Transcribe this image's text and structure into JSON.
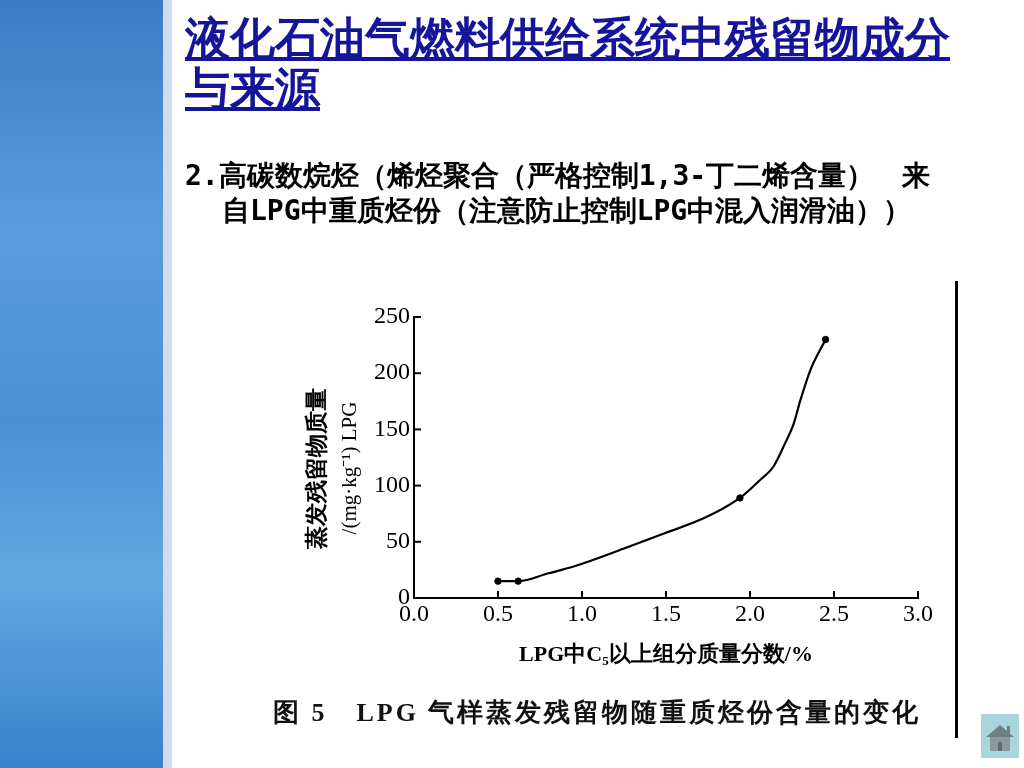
{
  "chart_data": {
    "type": "line",
    "title": "液化石油气燃料供给系统中残留物成分与来源",
    "subtitle": "2.高碳数烷烃（烯烃聚合（严格控制1,3-丁二烯含量）　来自LPG中重质烃份（注意防止控制LPG中混入润滑油））",
    "xlabel": "LPG中C₅以上组分质量分数/%",
    "ylabel": "蒸发残留物质量\n/(mg·kg⁻¹) LPG",
    "annotations": [
      "图 5　LPG 气样蒸发残留物随重质烃份含量的变化"
    ],
    "xlim": [
      0,
      3
    ],
    "xticks": [
      {
        "value": 0,
        "label": "0.0"
      },
      0.5,
      {
        "value": 1,
        "label": "1.0"
      },
      1.5,
      {
        "value": 2,
        "label": "2.0"
      },
      2.5,
      {
        "value": 3,
        "label": "3.0"
      }
    ],
    "ylim": [
      0,
      250
    ],
    "yticks": [
      0,
      50,
      100,
      150,
      200,
      250
    ],
    "series": [
      {
        "color": "#000000",
        "marker": "none",
        "x": [
          0.5,
          0.62,
          0.8,
          0.95,
          1.25,
          1.5,
          1.74,
          1.94,
          2.06,
          2.14,
          2.21,
          2.26,
          2.3,
          2.36,
          2.45
        ],
        "values": [
          15,
          15,
          22,
          28,
          44,
          58,
          72,
          89,
          105,
          117,
          138,
          155,
          176,
          203,
          230
        ]
      },
      {
        "type": "scatter",
        "color": "#000000",
        "marker": "circle",
        "x": [
          0.5,
          0.62,
          1.94,
          2.45
        ],
        "values": [
          15,
          15,
          89,
          230
        ]
      }
    ]
  }
}
